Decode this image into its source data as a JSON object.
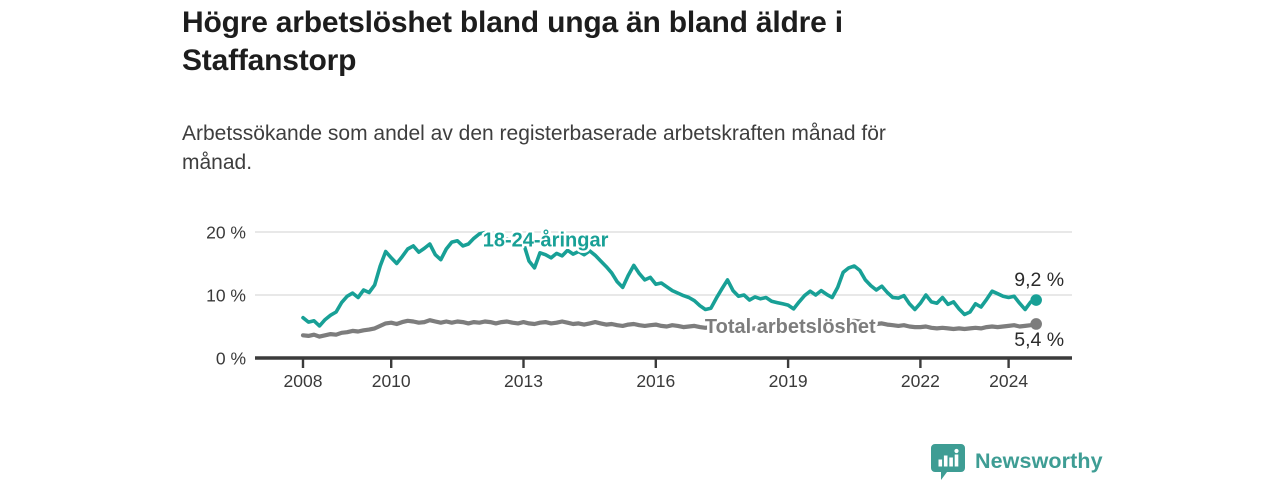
{
  "header": {
    "title_lines": [
      "Högre arbetslöshet bland unga än bland äldre i",
      "Staffanstorp"
    ],
    "subtitle_lines": [
      "Arbetssökande som andel av den registerbaserade arbetskraften månad för",
      "månad."
    ]
  },
  "footer": {
    "brand": "Newsworthy",
    "brand_color": "#3e9d94",
    "logo_icon": "bar-chart-speech-bubble"
  },
  "chart_data": {
    "type": "line",
    "grid": "horizontal",
    "legend_position": "inline-labels",
    "xlim": [
      2006.9,
      2025.45
    ],
    "ylim": [
      0,
      21
    ],
    "x_ticks": [
      {
        "year": 2008,
        "label": "2008"
      },
      {
        "year": 2010,
        "label": "2010"
      },
      {
        "year": 2013,
        "label": "2013"
      },
      {
        "year": 2016,
        "label": "2016"
      },
      {
        "year": 2019,
        "label": "2019"
      },
      {
        "year": 2022,
        "label": "2022"
      },
      {
        "year": 2024,
        "label": "2024"
      }
    ],
    "y_ticks": [
      {
        "value": 0,
        "label": "0 %"
      },
      {
        "value": 10,
        "label": "10 %"
      },
      {
        "value": 20,
        "label": "20 %"
      }
    ],
    "series": [
      {
        "name": "18-24-åringar",
        "color": "#18a096",
        "stroke_width": 3.6,
        "start": 2008.0,
        "step": 0.125,
        "end_value": 9.2,
        "end_label": "9,2 %",
        "end_label_position": "above",
        "label_anchor": {
          "x": 2013.5,
          "y": 19.0
        },
        "values": [
          6.4,
          5.7,
          5.9,
          5.1,
          6.1,
          6.8,
          7.3,
          8.8,
          9.8,
          10.3,
          9.6,
          10.8,
          10.4,
          11.6,
          14.6,
          16.9,
          15.9,
          15.0,
          16.1,
          17.3,
          17.8,
          16.8,
          17.4,
          18.1,
          16.4,
          15.6,
          17.3,
          18.4,
          18.6,
          17.8,
          18.1,
          19.0,
          19.7,
          19.9,
          18.5,
          17.7,
          18.4,
          18.9,
          18.3,
          18.6,
          18.2,
          15.4,
          14.3,
          16.7,
          16.4,
          15.9,
          16.6,
          16.2,
          17.1,
          16.5,
          16.9,
          16.4,
          17.0,
          16.3,
          15.4,
          14.5,
          13.5,
          12.1,
          11.2,
          13.1,
          14.7,
          13.4,
          12.4,
          12.8,
          11.7,
          11.9,
          11.3,
          10.7,
          10.3,
          9.9,
          9.6,
          9.1,
          8.3,
          7.7,
          7.9,
          9.5,
          11.0,
          12.4,
          10.7,
          9.8,
          10.0,
          9.2,
          9.7,
          9.4,
          9.6,
          9.0,
          8.8,
          8.6,
          8.4,
          7.8,
          8.9,
          9.9,
          10.6,
          10.0,
          10.7,
          10.1,
          9.6,
          11.2,
          13.6,
          14.3,
          14.6,
          13.9,
          12.4,
          11.5,
          10.8,
          11.4,
          10.4,
          9.6,
          9.5,
          9.9,
          8.6,
          7.7,
          8.7,
          10.0,
          8.9,
          8.7,
          9.6,
          8.5,
          8.9,
          7.8,
          6.9,
          7.3,
          8.6,
          8.1,
          9.3,
          10.6,
          10.2,
          9.8,
          9.6,
          9.8,
          8.7,
          7.7,
          8.9,
          9.2
        ]
      },
      {
        "name": "Total arbetslöshet",
        "color": "#7d7d7d",
        "stroke_width": 4.2,
        "start": 2008.0,
        "step": 0.125,
        "end_value": 5.4,
        "end_label": "5,4 %",
        "end_label_position": "below",
        "label_anchor": {
          "x": 2019.05,
          "y": 5.2
        },
        "values": [
          3.6,
          3.5,
          3.7,
          3.4,
          3.6,
          3.8,
          3.7,
          4.0,
          4.1,
          4.3,
          4.2,
          4.4,
          4.5,
          4.7,
          5.1,
          5.5,
          5.6,
          5.4,
          5.7,
          5.9,
          5.8,
          5.6,
          5.7,
          6.0,
          5.8,
          5.6,
          5.8,
          5.6,
          5.8,
          5.7,
          5.5,
          5.7,
          5.6,
          5.8,
          5.7,
          5.5,
          5.7,
          5.8,
          5.6,
          5.5,
          5.7,
          5.5,
          5.4,
          5.6,
          5.7,
          5.5,
          5.6,
          5.8,
          5.6,
          5.4,
          5.5,
          5.3,
          5.5,
          5.7,
          5.5,
          5.3,
          5.4,
          5.2,
          5.1,
          5.3,
          5.4,
          5.2,
          5.1,
          5.2,
          5.3,
          5.1,
          5.0,
          5.2,
          5.1,
          4.9,
          5.0,
          5.1,
          4.9,
          4.8,
          4.9,
          5.0,
          5.1,
          4.9,
          4.8,
          4.9,
          4.8,
          4.6,
          4.7,
          4.8,
          4.7,
          4.5,
          4.6,
          4.7,
          4.6,
          4.5,
          4.6,
          4.8,
          4.9,
          4.8,
          4.9,
          5.0,
          4.9,
          5.2,
          5.6,
          5.8,
          5.9,
          5.8,
          5.6,
          5.5,
          5.4,
          5.5,
          5.3,
          5.2,
          5.1,
          5.2,
          5.0,
          4.9,
          4.9,
          5.0,
          4.8,
          4.7,
          4.8,
          4.7,
          4.6,
          4.7,
          4.6,
          4.7,
          4.8,
          4.7,
          4.9,
          5.0,
          4.9,
          5.0,
          5.1,
          5.2,
          5.0,
          5.1,
          5.2,
          5.4
        ]
      }
    ]
  }
}
